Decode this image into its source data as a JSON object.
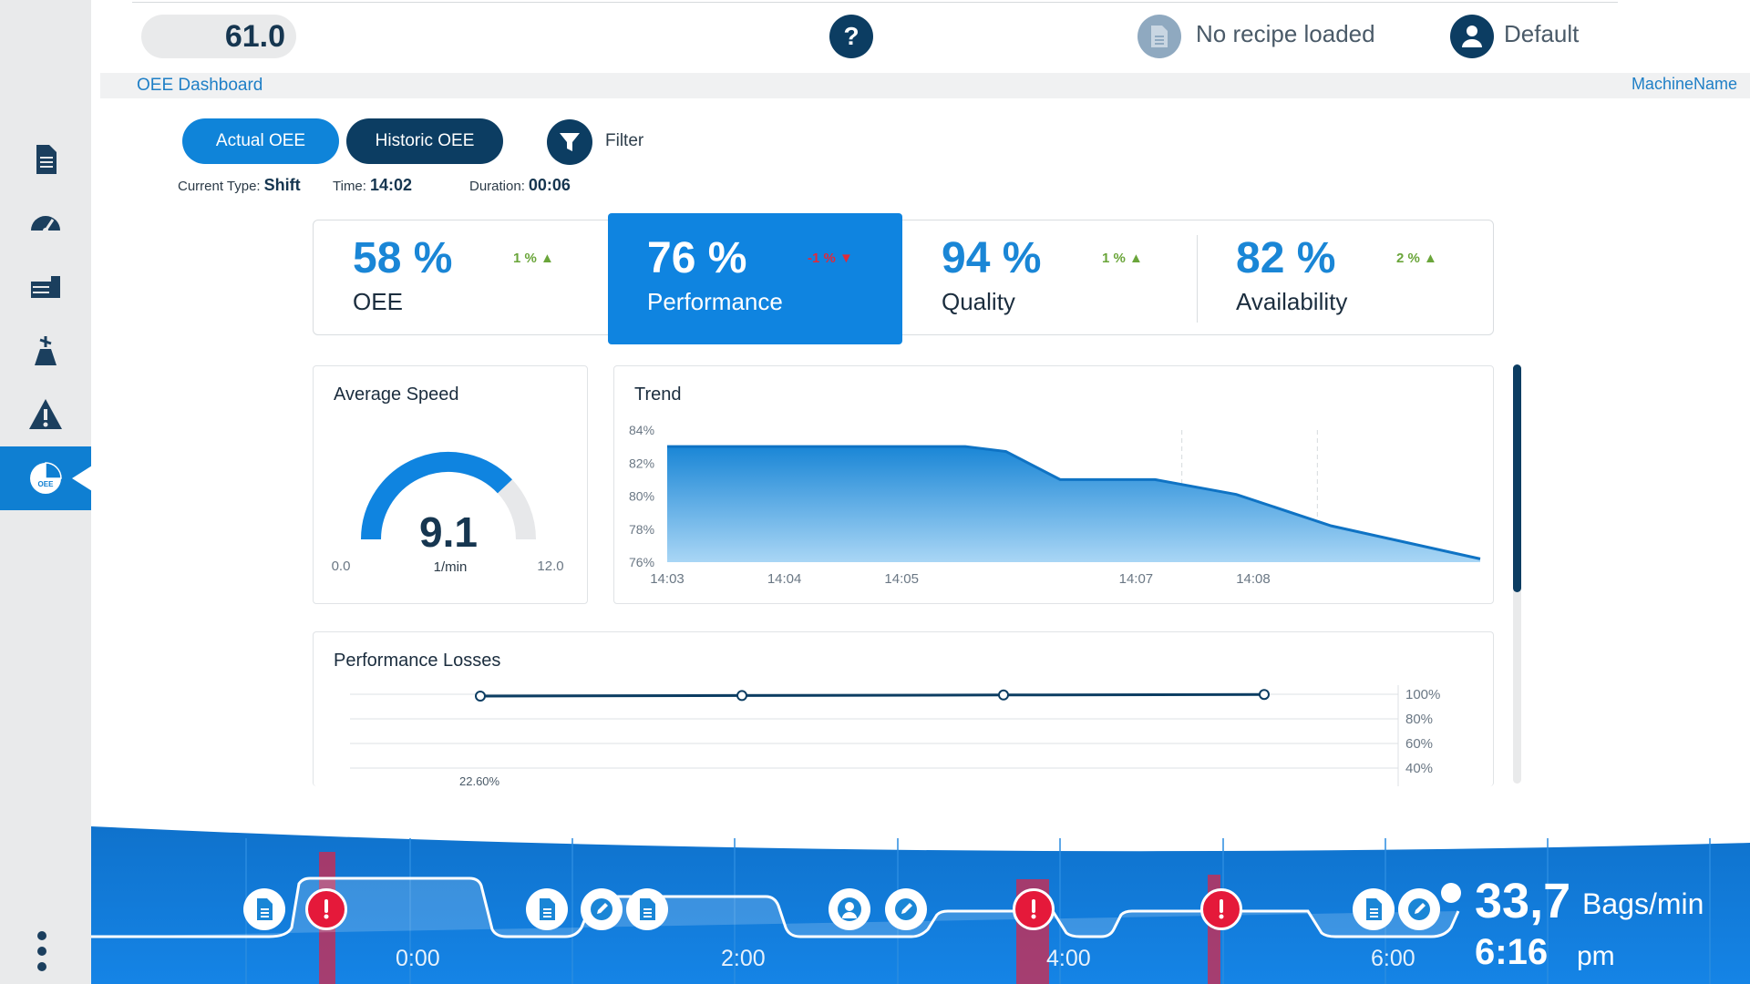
{
  "header": {
    "counter_value": "61.0",
    "help_label": "?",
    "recipe_text": "No recipe loaded",
    "user_name": "Default"
  },
  "page": {
    "title": "OEE Dashboard",
    "machine_name": "MachineName"
  },
  "toolbar": {
    "actual_label": "Actual OEE",
    "historic_label": "Historic OEE",
    "filter_label": "Filter"
  },
  "meta": {
    "type_label": "Current Type:",
    "type_value": "Shift",
    "time_label": "Time:",
    "time_value": "14:02",
    "duration_label": "Duration:",
    "duration_value": "00:06"
  },
  "sidebar": {
    "items": [
      {
        "name": "document-icon"
      },
      {
        "name": "gauge-icon"
      },
      {
        "name": "machine-icon"
      },
      {
        "name": "tools-icon"
      },
      {
        "name": "warning-icon"
      },
      {
        "name": "oee-icon",
        "label": "OEE",
        "active": true
      }
    ]
  },
  "kpis": [
    {
      "value": "58 %",
      "label": "OEE",
      "delta": "1 %",
      "trend": "up"
    },
    {
      "value": "76 %",
      "label": "Performance",
      "delta": "-1 %",
      "trend": "down"
    },
    {
      "value": "94 %",
      "label": "Quality",
      "delta": "1 %",
      "trend": "up"
    },
    {
      "value": "82 %",
      "label": "Availability",
      "delta": "2 %",
      "trend": "up"
    }
  ],
  "speed": {
    "title": "Average Speed",
    "value": "9.1",
    "unit": "1/min",
    "min_label": "0.0",
    "max_label": "12.0",
    "fill_fraction": 0.76
  },
  "trend": {
    "title": "Trend"
  },
  "losses": {
    "title": "Performance Losses",
    "first_label": "22.60%"
  },
  "chart_data": [
    {
      "type": "area",
      "title": "Trend",
      "x": [
        "14:03",
        "14:04",
        "14:05",
        "14:06",
        "14:07",
        "14:08",
        "14:09"
      ],
      "x_ticks": [
        "14:03",
        "14:04",
        "14:05",
        "14:07",
        "14:08"
      ],
      "series": [
        {
          "values": [
            83,
            83,
            83,
            81,
            81,
            79,
            76.2
          ]
        }
      ],
      "y_ticks": [
        "84%",
        "82%",
        "80%",
        "78%",
        "76%"
      ],
      "ylim": [
        76,
        84
      ],
      "grid": false
    },
    {
      "type": "line",
      "title": "Performance Losses",
      "series": [
        {
          "values": [
            100,
            100,
            100,
            100
          ]
        }
      ],
      "y_ticks": [
        "100%",
        "80%",
        "60%",
        "40%"
      ],
      "annotations": [
        "22.60%"
      ],
      "ylim": [
        40,
        100
      ],
      "grid": true
    }
  ],
  "bottom": {
    "times": [
      "0:00",
      "2:00",
      "4:00",
      "6:00"
    ],
    "rate_value": "33,7",
    "rate_unit": "Bags/min",
    "clock_value": "6:16",
    "clock_ampm": "pm",
    "events": [
      {
        "kind": "doc",
        "name": "document-event-icon"
      },
      {
        "kind": "alert",
        "name": "alert-event-icon"
      },
      {
        "kind": "doc",
        "name": "document-event-icon"
      },
      {
        "kind": "edit",
        "name": "edit-event-icon"
      },
      {
        "kind": "doc",
        "name": "document-event-icon"
      },
      {
        "kind": "user",
        "name": "user-event-icon"
      },
      {
        "kind": "edit",
        "name": "edit-event-icon"
      },
      {
        "kind": "alert",
        "name": "alert-event-icon"
      },
      {
        "kind": "alert",
        "name": "alert-event-icon"
      },
      {
        "kind": "doc",
        "name": "document-event-icon"
      },
      {
        "kind": "edit",
        "name": "edit-event-icon"
      }
    ],
    "colors": {
      "bar": "#0f72cc",
      "accent": "#0f84e0",
      "alert": "#e5193a"
    }
  }
}
